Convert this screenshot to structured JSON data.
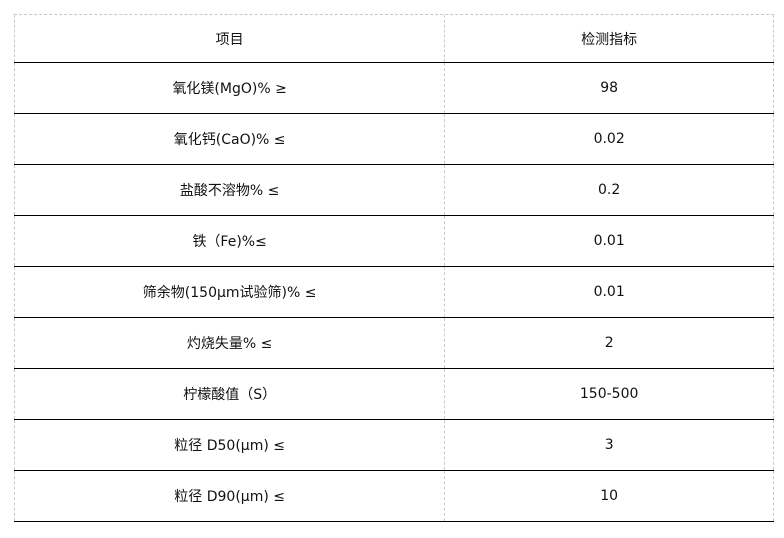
{
  "table": {
    "headers": [
      "项目",
      "检测指标"
    ],
    "rows": [
      {
        "item": "氧化镁(MgO)% ≥",
        "value": "98"
      },
      {
        "item": "氧化钙(CaO)% ≤",
        "value": "0.02"
      },
      {
        "item": "盐酸不溶物% ≤",
        "value": "0.2"
      },
      {
        "item": "铁（Fe)%≤",
        "value": "0.01"
      },
      {
        "item": "筛余物(150μm试验筛)% ≤",
        "value": "0.01"
      },
      {
        "item": "灼烧失量% ≤",
        "value": "2"
      },
      {
        "item": "柠檬酸值（S）",
        "value": "150-500"
      },
      {
        "item": "粒径 D50(μm) ≤",
        "value": "3"
      },
      {
        "item": "粒径 D90(μm) ≤",
        "value": "10"
      }
    ]
  }
}
